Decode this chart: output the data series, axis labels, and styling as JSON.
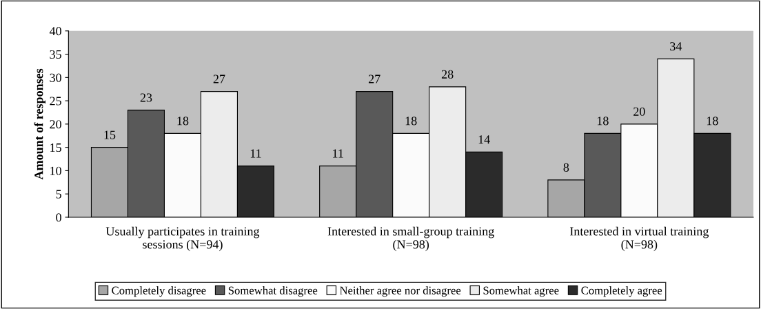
{
  "chart_data": {
    "type": "bar",
    "ylabel": "Amount of responses",
    "categories": [
      "Usually participates in training\nsessions (N=94)",
      "Interested in small-group training\n(N=98)",
      "Interested in virtual training\n(N=98)"
    ],
    "series": [
      {
        "name": "Completely disagree",
        "color": "#a6a6a6",
        "values": [
          15,
          11,
          8
        ]
      },
      {
        "name": "Somewhat disagree",
        "color": "#595959",
        "values": [
          23,
          27,
          18
        ]
      },
      {
        "name": "Neither agree nor disagree",
        "color": "#fbfbfb",
        "values": [
          18,
          18,
          20
        ]
      },
      {
        "name": "Somewhat agree",
        "color": "#ececec",
        "values": [
          27,
          28,
          34
        ]
      },
      {
        "name": "Completely agree",
        "color": "#2b2b2b",
        "values": [
          11,
          14,
          18
        ]
      }
    ],
    "ylim": [
      0,
      40
    ],
    "yticks": [
      0,
      5,
      10,
      15,
      20,
      25,
      30,
      35,
      40
    ],
    "data_labels": true,
    "grid": false,
    "legend": "bottom"
  }
}
